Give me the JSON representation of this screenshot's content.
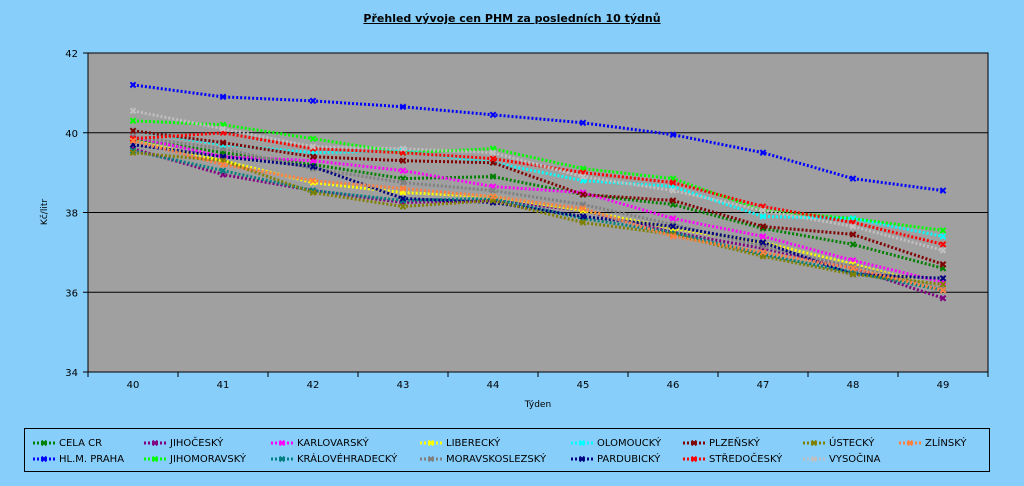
{
  "chart_data": {
    "type": "line",
    "title": "Přehled vývoje cen PHM  za posledních 10 týdnů",
    "xlabel": "Týden",
    "ylabel": "Kč/litr",
    "x": [
      40,
      41,
      42,
      43,
      44,
      45,
      46,
      47,
      48,
      49
    ],
    "ylim": [
      34,
      42
    ],
    "yticks": [
      34,
      36,
      38,
      40,
      42
    ],
    "grid": true,
    "legend_position": "bottom",
    "series": [
      {
        "name": "CELA CR",
        "color": "#008000",
        "values": [
          39.85,
          39.5,
          39.2,
          38.85,
          38.9,
          38.45,
          38.2,
          37.6,
          37.2,
          36.6
        ]
      },
      {
        "name": "HL.M. PRAHA",
        "color": "#0000ff",
        "values": [
          41.2,
          40.9,
          40.8,
          40.65,
          40.45,
          40.25,
          39.95,
          39.5,
          38.85,
          38.55
        ]
      },
      {
        "name": "JIHOČESKÝ",
        "color": "#800080",
        "values": [
          39.6,
          38.95,
          38.55,
          38.25,
          38.3,
          38.05,
          37.5,
          37.1,
          36.6,
          35.85
        ]
      },
      {
        "name": "JIHOMORAVSKÝ",
        "color": "#00ff00",
        "values": [
          40.3,
          40.2,
          39.85,
          39.5,
          39.6,
          39.1,
          38.85,
          38.05,
          37.85,
          37.55
        ]
      },
      {
        "name": "KARLOVARSKÝ",
        "color": "#ff00ff",
        "values": [
          39.9,
          39.4,
          39.3,
          39.05,
          38.65,
          38.5,
          37.85,
          37.4,
          36.8,
          36.25
        ]
      },
      {
        "name": "KRÁLOVÉHRADECKÝ",
        "color": "#008080",
        "values": [
          39.55,
          39.05,
          38.55,
          38.3,
          38.35,
          37.85,
          37.5,
          36.95,
          36.5,
          36.05
        ]
      },
      {
        "name": "LIBERECKÝ",
        "color": "#ffff00",
        "values": [
          39.8,
          39.3,
          38.75,
          38.5,
          38.4,
          38.05,
          37.6,
          37.25,
          36.7,
          36.1
        ]
      },
      {
        "name": "MORAVSKOSLEZSKÝ",
        "color": "#808080",
        "values": [
          39.9,
          39.6,
          39.1,
          38.75,
          38.55,
          38.2,
          37.7,
          37.15,
          36.65,
          36.1
        ]
      },
      {
        "name": "OLOMOUCKÝ",
        "color": "#00ffff",
        "values": [
          40.05,
          39.7,
          39.5,
          39.55,
          39.25,
          38.8,
          38.65,
          37.9,
          37.85,
          37.4
        ]
      },
      {
        "name": "PARDUBICKÝ",
        "color": "#000080",
        "values": [
          39.7,
          39.4,
          39.15,
          38.35,
          38.25,
          37.9,
          37.65,
          37.25,
          36.45,
          36.35
        ]
      },
      {
        "name": "PLZEŇSKÝ",
        "color": "#800000",
        "values": [
          40.05,
          39.75,
          39.4,
          39.3,
          39.25,
          38.45,
          38.3,
          37.65,
          37.45,
          36.7
        ]
      },
      {
        "name": "STŘEDOČESKÝ",
        "color": "#ff0000",
        "values": [
          39.85,
          40.0,
          39.6,
          39.5,
          39.35,
          39.0,
          38.75,
          38.15,
          37.75,
          37.2
        ]
      },
      {
        "name": "ÚSTECKÝ",
        "color": "#808000",
        "values": [
          39.5,
          39.3,
          38.5,
          38.15,
          38.3,
          37.75,
          37.45,
          36.9,
          36.45,
          36.2
        ]
      },
      {
        "name": "VYSOČINA",
        "color": "#c0c0c0",
        "values": [
          40.55,
          40.1,
          39.65,
          39.6,
          39.5,
          38.9,
          38.55,
          38.05,
          37.65,
          37.05
        ]
      },
      {
        "name": "ZLÍNSKÝ",
        "color": "#ff8040",
        "values": [
          39.8,
          39.2,
          38.8,
          38.6,
          38.4,
          38.1,
          37.4,
          37.0,
          36.6,
          36.05
        ]
      }
    ]
  }
}
